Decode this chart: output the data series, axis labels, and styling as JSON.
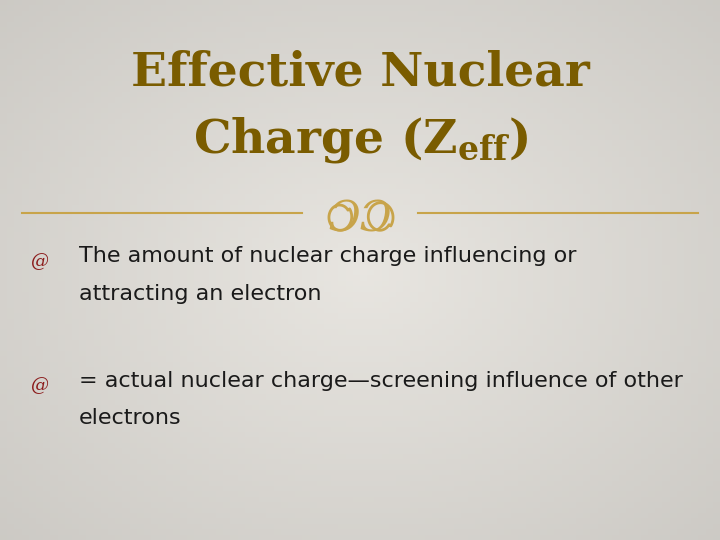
{
  "title_line1": "Effective Nuclear",
  "title_line2": "Charge (Z$_{\\mathregular{eff}}$)",
  "title_color": "#7a5c00",
  "bg_color": "#e0ddd6",
  "divider_color": "#c8a44a",
  "bullet_color": "#8b1a1a",
  "bullet1_line1": "The amount of nuclear charge influencing or",
  "bullet1_line2": "attracting an electron",
  "bullet2_line1": "= actual nuclear charge—screening influence of other",
  "bullet2_line2": "electrons",
  "text_color": "#1a1a1a",
  "font_size_title": 34,
  "font_size_body": 16,
  "ornament_color": "#c8a44a"
}
